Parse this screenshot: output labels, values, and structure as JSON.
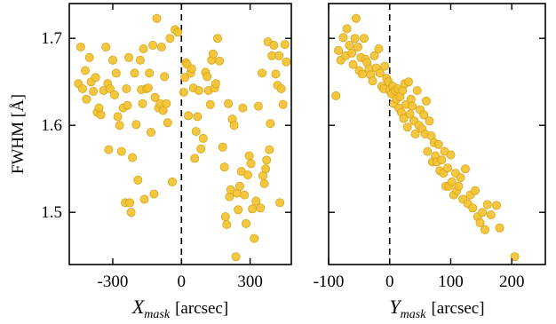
{
  "colors": {
    "point_fill": "#f2c230",
    "point_stroke": "#d8a41c",
    "axis": "#000000",
    "zero_line": "#000000"
  },
  "chart_data": [
    {
      "type": "scatter",
      "title": "",
      "xlabel_main": "X",
      "xlabel_sub": "mask",
      "xlabel_unit": "[arcsec]",
      "ylabel": "FWHM  [Å]",
      "xlim": [
        -490,
        480
      ],
      "ylim": [
        1.44,
        1.74
      ],
      "xticks": [
        -300,
        0,
        300
      ],
      "xtick_labels": [
        "-300",
        "0",
        "300"
      ],
      "yticks": [
        1.5,
        1.6,
        1.7
      ],
      "ytick_labels": [
        "1.5",
        "1.6",
        "1.7"
      ],
      "reference_line_x": 0,
      "grid": false,
      "points": [
        [
          -450,
          1.648
        ],
        [
          -440,
          1.69
        ],
        [
          -432,
          1.642
        ],
        [
          -420,
          1.663
        ],
        [
          -415,
          1.63
        ],
        [
          -402,
          1.678
        ],
        [
          -395,
          1.65
        ],
        [
          -385,
          1.639
        ],
        [
          -375,
          1.655
        ],
        [
          -368,
          1.615
        ],
        [
          -360,
          1.62
        ],
        [
          -352,
          1.612
        ],
        [
          -340,
          1.64
        ],
        [
          -330,
          1.69
        ],
        [
          -322,
          1.648
        ],
        [
          -318,
          1.572
        ],
        [
          -312,
          1.642
        ],
        [
          -300,
          1.675
        ],
        [
          -292,
          1.635
        ],
        [
          -285,
          1.66
        ],
        [
          -278,
          1.61
        ],
        [
          -270,
          1.6
        ],
        [
          -262,
          1.57
        ],
        [
          -255,
          1.62
        ],
        [
          -245,
          1.511
        ],
        [
          -240,
          1.642
        ],
        [
          -236,
          1.623
        ],
        [
          -230,
          1.678
        ],
        [
          -226,
          1.511
        ],
        [
          -220,
          1.5
        ],
        [
          -214,
          1.563
        ],
        [
          -205,
          1.66
        ],
        [
          -198,
          1.601
        ],
        [
          -190,
          1.537
        ],
        [
          -180,
          1.675
        ],
        [
          -175,
          1.641
        ],
        [
          -170,
          1.625
        ],
        [
          -166,
          1.688
        ],
        [
          -162,
          1.515
        ],
        [
          -152,
          1.642
        ],
        [
          -145,
          1.643
        ],
        [
          -140,
          1.66
        ],
        [
          -133,
          1.592
        ],
        [
          -125,
          1.692
        ],
        [
          -120,
          1.521
        ],
        [
          -115,
          1.632
        ],
        [
          -108,
          1.723
        ],
        [
          -100,
          1.62
        ],
        [
          -93,
          1.625
        ],
        [
          -87,
          1.69
        ],
        [
          -80,
          1.617
        ],
        [
          -74,
          1.656
        ],
        [
          -66,
          1.625
        ],
        [
          -60,
          1.603
        ],
        [
          -50,
          1.7
        ],
        [
          -40,
          1.535
        ],
        [
          -28,
          1.71
        ],
        [
          -16,
          1.707
        ],
        [
          10,
          1.638
        ],
        [
          15,
          1.655
        ],
        [
          20,
          1.672
        ],
        [
          25,
          1.67
        ],
        [
          30,
          1.611
        ],
        [
          40,
          1.66
        ],
        [
          45,
          1.665
        ],
        [
          52,
          1.643
        ],
        [
          58,
          1.562
        ],
        [
          64,
          1.593
        ],
        [
          70,
          1.61
        ],
        [
          76,
          1.64
        ],
        [
          85,
          1.573
        ],
        [
          95,
          1.585
        ],
        [
          105,
          1.661
        ],
        [
          112,
          1.656
        ],
        [
          118,
          1.64
        ],
        [
          126,
          1.624
        ],
        [
          132,
          1.675
        ],
        [
          138,
          1.682
        ],
        [
          145,
          1.643
        ],
        [
          150,
          1.648
        ],
        [
          158,
          1.7
        ],
        [
          166,
          1.674
        ],
        [
          180,
          1.575
        ],
        [
          188,
          1.552
        ],
        [
          192,
          1.495
        ],
        [
          198,
          1.486
        ],
        [
          205,
          1.625
        ],
        [
          210,
          1.518
        ],
        [
          215,
          1.526
        ],
        [
          222,
          1.607
        ],
        [
          230,
          1.6
        ],
        [
          238,
          1.449
        ],
        [
          242,
          1.522
        ],
        [
          248,
          1.503
        ],
        [
          255,
          1.53
        ],
        [
          262,
          1.547
        ],
        [
          268,
          1.62
        ],
        [
          275,
          1.52
        ],
        [
          282,
          1.487
        ],
        [
          290,
          1.543
        ],
        [
          296,
          1.565
        ],
        [
          304,
          1.556
        ],
        [
          310,
          1.504
        ],
        [
          318,
          1.47
        ],
        [
          326,
          1.513
        ],
        [
          336,
          1.622
        ],
        [
          345,
          1.505
        ],
        [
          352,
          1.66
        ],
        [
          356,
          1.542
        ],
        [
          362,
          1.533
        ],
        [
          368,
          1.55
        ],
        [
          372,
          1.56
        ],
        [
          378,
          1.696
        ],
        [
          384,
          1.572
        ],
        [
          388,
          1.602
        ],
        [
          395,
          1.68
        ],
        [
          404,
          1.692
        ],
        [
          412,
          1.659
        ],
        [
          420,
          1.646
        ],
        [
          426,
          1.68
        ],
        [
          430,
          1.511
        ],
        [
          436,
          1.642
        ],
        [
          444,
          1.624
        ],
        [
          452,
          1.693
        ],
        [
          458,
          1.673
        ]
      ]
    },
    {
      "type": "scatter",
      "title": "",
      "xlabel_main": "Y",
      "xlabel_sub": "mask",
      "xlabel_unit": "[arcsec]",
      "ylabel": "",
      "xlim": [
        -100,
        255
      ],
      "ylim": [
        1.44,
        1.74
      ],
      "xticks": [
        -100,
        0,
        100,
        200
      ],
      "xtick_labels": [
        "-100",
        "0",
        "100",
        "200"
      ],
      "yticks": [
        1.5,
        1.6,
        1.7
      ],
      "ytick_labels": [],
      "reference_line_x": 0,
      "grid": false,
      "points": [
        [
          -88,
          1.634
        ],
        [
          -84,
          1.686
        ],
        [
          -80,
          1.675
        ],
        [
          -76,
          1.701
        ],
        [
          -72,
          1.68
        ],
        [
          -70,
          1.711
        ],
        [
          -66,
          1.692
        ],
        [
          -62,
          1.683
        ],
        [
          -60,
          1.67
        ],
        [
          -57,
          1.7
        ],
        [
          -55,
          1.723
        ],
        [
          -52,
          1.69
        ],
        [
          -50,
          1.663
        ],
        [
          -47,
          1.678
        ],
        [
          -45,
          1.659
        ],
        [
          -42,
          1.7
        ],
        [
          -40,
          1.676
        ],
        [
          -37,
          1.672
        ],
        [
          -34,
          1.665
        ],
        [
          -31,
          1.658
        ],
        [
          -28,
          1.651
        ],
        [
          -25,
          1.68
        ],
        [
          -22,
          1.666
        ],
        [
          -18,
          1.688
        ],
        [
          -16,
          1.66
        ],
        [
          -13,
          1.645
        ],
        [
          -10,
          1.642
        ],
        [
          -8,
          1.668
        ],
        [
          -5,
          1.654
        ],
        [
          -2,
          1.65
        ],
        [
          0,
          1.64
        ],
        [
          3,
          1.636
        ],
        [
          5,
          1.645
        ],
        [
          7,
          1.625
        ],
        [
          9,
          1.64
        ],
        [
          11,
          1.63
        ],
        [
          13,
          1.642
        ],
        [
          15,
          1.62
        ],
        [
          17,
          1.633
        ],
        [
          19,
          1.615
        ],
        [
          21,
          1.64
        ],
        [
          23,
          1.608
        ],
        [
          25,
          1.648
        ],
        [
          27,
          1.624
        ],
        [
          29,
          1.598
        ],
        [
          31,
          1.65
        ],
        [
          33,
          1.613
        ],
        [
          35,
          1.63
        ],
        [
          37,
          1.622
        ],
        [
          40,
          1.605
        ],
        [
          42,
          1.59
        ],
        [
          45,
          1.64
        ],
        [
          48,
          1.6
        ],
        [
          50,
          1.618
        ],
        [
          53,
          1.596
        ],
        [
          56,
          1.612
        ],
        [
          58,
          1.59
        ],
        [
          60,
          1.628
        ],
        [
          62,
          1.57
        ],
        [
          65,
          1.605
        ],
        [
          68,
          1.588
        ],
        [
          70,
          1.558
        ],
        [
          73,
          1.58
        ],
        [
          75,
          1.565
        ],
        [
          77,
          1.558
        ],
        [
          80,
          1.578
        ],
        [
          82,
          1.548
        ],
        [
          85,
          1.56
        ],
        [
          88,
          1.545
        ],
        [
          90,
          1.57
        ],
        [
          92,
          1.53
        ],
        [
          95,
          1.551
        ],
        [
          97,
          1.53
        ],
        [
          100,
          1.566
        ],
        [
          102,
          1.535
        ],
        [
          105,
          1.52
        ],
        [
          108,
          1.545
        ],
        [
          110,
          1.525
        ],
        [
          113,
          1.53
        ],
        [
          116,
          1.54
        ],
        [
          120,
          1.515
        ],
        [
          124,
          1.55
        ],
        [
          128,
          1.51
        ],
        [
          132,
          1.52
        ],
        [
          136,
          1.505
        ],
        [
          140,
          1.525
        ],
        [
          144,
          1.495
        ],
        [
          148,
          1.488
        ],
        [
          152,
          1.5
        ],
        [
          156,
          1.48
        ],
        [
          160,
          1.509
        ],
        [
          166,
          1.497
        ],
        [
          175,
          1.508
        ],
        [
          180,
          1.482
        ],
        [
          205,
          1.449
        ]
      ]
    }
  ]
}
